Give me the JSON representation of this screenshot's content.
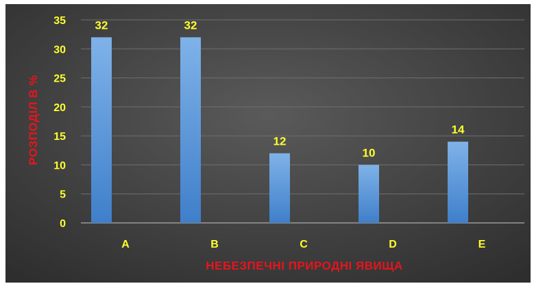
{
  "chart_data": {
    "type": "bar",
    "categories": [
      "A",
      "B",
      "C",
      "D",
      "E"
    ],
    "values": [
      32,
      32,
      12,
      10,
      14
    ],
    "xlabel": "НЕБЕЗПЕЧНІ ПРИРОДНІ ЯВИЩА",
    "ylabel": "РОЗПОДІЛ В %",
    "ylim": [
      0,
      35
    ],
    "yticks": [
      0,
      5,
      10,
      15,
      20,
      25,
      30,
      35
    ],
    "grid": true,
    "legend": "none",
    "data_labels": true
  },
  "colors": {
    "background_light": "#5a5a5a",
    "background_dark": "#2e2e2e",
    "bar_top": "#7fb2e8",
    "bar_bottom": "#3f7fca",
    "label": "#ffff2e",
    "axis_title": "#e8141c",
    "grid": "#6f6f6f",
    "baseline": "#9a9a9a"
  }
}
